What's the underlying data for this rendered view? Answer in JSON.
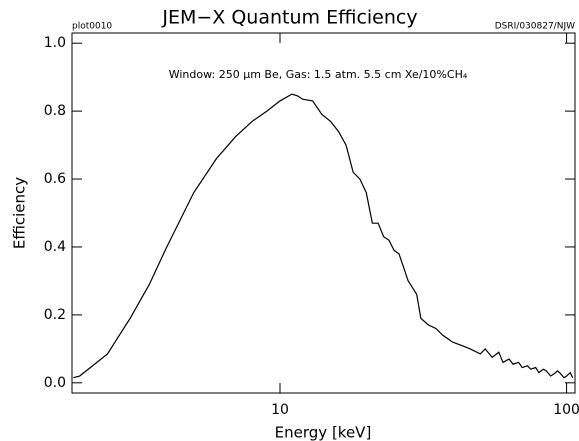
{
  "chart_data": {
    "type": "line",
    "title": "JEM−X Quantum Efficiency",
    "corner_left": "plot0010",
    "corner_right": "DSRI/030827/NJW",
    "annotation": "Window: 250 μm Be, Gas: 1.5 atm. 5.5 cm Xe/10%CH₄",
    "x_label": "Energy [keV]",
    "y_label": "Efficiency",
    "log_x": true,
    "xlim": [
      1.88,
      107
    ],
    "ylim": [
      -0.03,
      1.03
    ],
    "xticks": [
      10,
      100
    ],
    "yticks": [
      {
        "value": 0,
        "label": "0.0"
      },
      0.2,
      0.4,
      0.6,
      0.8,
      {
        "value": 1,
        "label": "1.0"
      }
    ],
    "x": [
      1.9,
      2,
      2.5,
      3,
      3.5,
      4,
      5,
      6,
      7,
      8,
      9,
      10,
      11,
      11.5,
      12,
      13,
      14,
      15,
      16,
      17,
      18,
      19,
      20,
      21,
      22,
      23,
      24,
      25,
      26,
      27,
      28,
      29,
      30,
      31,
      33,
      35,
      37,
      40,
      43,
      46,
      50,
      52,
      55,
      58,
      60,
      63,
      65,
      68,
      70,
      73,
      75,
      78,
      80,
      83,
      85,
      88,
      90,
      93,
      95,
      98,
      100,
      103,
      105
    ],
    "series": [
      {
        "name": "Efficiency",
        "color": "#000000",
        "values": [
          0.015,
          0.02,
          0.085,
          0.19,
          0.29,
          0.395,
          0.56,
          0.66,
          0.725,
          0.77,
          0.8,
          0.83,
          0.85,
          0.845,
          0.835,
          0.83,
          0.79,
          0.77,
          0.74,
          0.7,
          0.62,
          0.6,
          0.56,
          0.47,
          0.47,
          0.43,
          0.42,
          0.39,
          0.38,
          0.34,
          0.3,
          0.28,
          0.26,
          0.19,
          0.17,
          0.16,
          0.14,
          0.12,
          0.11,
          0.1,
          0.085,
          0.1,
          0.075,
          0.09,
          0.06,
          0.07,
          0.055,
          0.06,
          0.045,
          0.05,
          0.04,
          0.045,
          0.03,
          0.04,
          0.035,
          0.02,
          0.025,
          0.035,
          0.028,
          0.015,
          0.02,
          0.03,
          0.015
        ]
      }
    ]
  }
}
